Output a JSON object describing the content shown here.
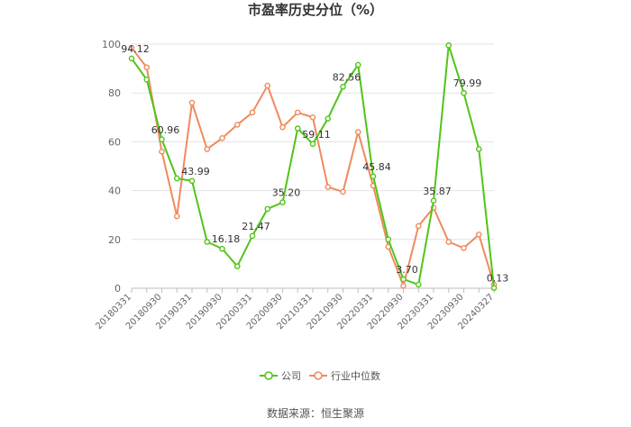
{
  "chart_data": {
    "type": "line",
    "title": "市盈率历史分位（%）",
    "source": "数据来源：恒生聚源",
    "ylim": [
      0,
      100
    ],
    "yticks": [
      "0",
      "20",
      "40",
      "60",
      "80",
      "100"
    ],
    "grid": true,
    "legend_position": "bottom-center",
    "categories": [
      "20180331",
      "20180630",
      "20180930",
      "20181231",
      "20190331",
      "20190630",
      "20190930",
      "20191231",
      "20200331",
      "20200630",
      "20200930",
      "20201231",
      "20210331",
      "20210630",
      "20210930",
      "20211231",
      "20220331",
      "20220630",
      "20220930",
      "20221231",
      "20230331",
      "20230630",
      "20230930",
      "20231231",
      "20240327"
    ],
    "xtick_labels": [
      "20180331",
      "20180930",
      "20190331",
      "20190930",
      "20200331",
      "20200930",
      "20210331",
      "20210930",
      "20220331",
      "20220930",
      "20230331",
      "20230930",
      "20240327"
    ],
    "series": [
      {
        "name": "公司",
        "color": "#52c41a",
        "values": [
          94.12,
          85.5,
          60.96,
          45.0,
          43.99,
          19.0,
          16.18,
          9.0,
          21.47,
          32.5,
          35.2,
          65.5,
          59.11,
          69.5,
          82.56,
          91.5,
          45.84,
          20.0,
          3.7,
          1.5,
          35.87,
          99.5,
          79.99,
          57.0,
          0.13
        ],
        "labels": {
          "0": "94.12",
          "2": "60.96",
          "4": "43.99",
          "6": "16.18",
          "8": "21.47",
          "10": "35.20",
          "12": "59.11",
          "14": "82.56",
          "16": "45.84",
          "18": "3.70",
          "20": "35.87",
          "22": "79.99",
          "24": "0.13"
        }
      },
      {
        "name": "行业中位数",
        "color": "#f08a5d",
        "values": [
          98.5,
          90.5,
          56.0,
          29.5,
          76.0,
          57.0,
          61.5,
          67.0,
          72.0,
          83.0,
          66.0,
          72.0,
          70.0,
          41.5,
          39.5,
          64.0,
          42.0,
          17.0,
          1.0,
          25.5,
          33.0,
          19.0,
          16.5,
          22.0,
          1.5
        ],
        "labels": {}
      }
    ]
  }
}
